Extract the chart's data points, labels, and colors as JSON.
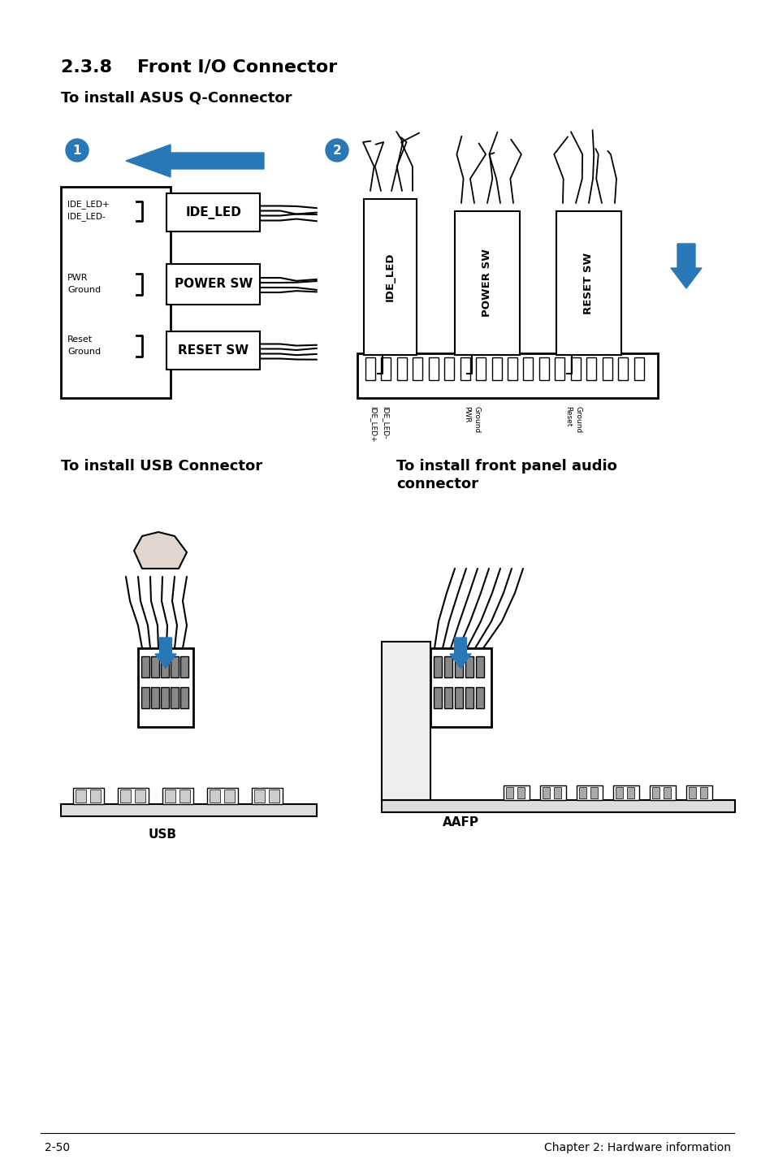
{
  "bg_color": "#ffffff",
  "title": "2.3.8    Front I/O Connector",
  "subtitle": "To install ASUS Q-Connector",
  "footer_left": "2-50",
  "footer_right": "Chapter 2: Hardware information",
  "usb_label": "USB",
  "aafp_label": "AAFP",
  "usb_section_title": "To install USB Connector",
  "audio_section_title": "To install front panel audio\nconnector",
  "arrow_color": "#2878b8",
  "line_color": "#000000",
  "fig_w": 9.54,
  "fig_h": 14.38,
  "dpi": 100
}
